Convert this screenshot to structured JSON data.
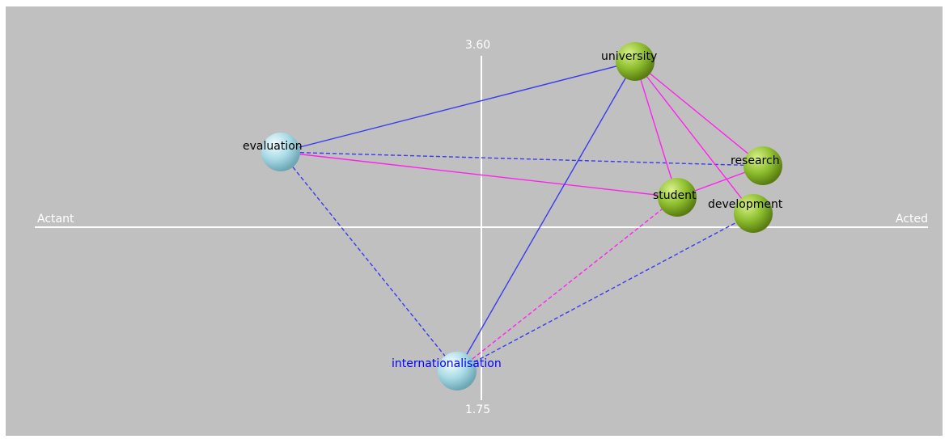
{
  "axes": {
    "top_value": "3.60",
    "bottom_value": "1.75",
    "left_label": "Actant",
    "right_label": "Acted"
  },
  "colors": {
    "background": "#c0c0c0",
    "axis": "#ffffff",
    "actant_node": "#a9dbe6",
    "acted_node": "#8fbf2f",
    "edge_blue": "#3a3aef",
    "edge_magenta": "#ff22ee",
    "label_black": "#000000",
    "label_blue": "#0000ff"
  },
  "nodes": [
    {
      "id": "university",
      "label": "university",
      "type": "acted"
    },
    {
      "id": "evaluation",
      "label": "evaluation",
      "type": "actant"
    },
    {
      "id": "research",
      "label": "research",
      "type": "acted"
    },
    {
      "id": "student",
      "label": "student",
      "type": "acted"
    },
    {
      "id": "development",
      "label": "development",
      "type": "acted"
    },
    {
      "id": "internationalisation",
      "label": "internationalisation",
      "type": "actant"
    }
  ],
  "edges": [
    {
      "from": "evaluation",
      "to": "university",
      "color": "blue",
      "style": "solid"
    },
    {
      "from": "evaluation",
      "to": "student",
      "color": "magenta",
      "style": "solid"
    },
    {
      "from": "evaluation",
      "to": "research",
      "color": "blue",
      "style": "dashed"
    },
    {
      "from": "evaluation",
      "to": "internationalisation",
      "color": "blue",
      "style": "dashed"
    },
    {
      "from": "internationalisation",
      "to": "university",
      "color": "blue",
      "style": "solid"
    },
    {
      "from": "internationalisation",
      "to": "student",
      "color": "magenta",
      "style": "dashed"
    },
    {
      "from": "internationalisation",
      "to": "development",
      "color": "blue",
      "style": "dashed"
    },
    {
      "from": "university",
      "to": "student",
      "color": "magenta",
      "style": "solid"
    },
    {
      "from": "university",
      "to": "research",
      "color": "magenta",
      "style": "solid"
    },
    {
      "from": "university",
      "to": "development",
      "color": "magenta",
      "style": "solid"
    },
    {
      "from": "student",
      "to": "research",
      "color": "magenta",
      "style": "solid"
    }
  ]
}
